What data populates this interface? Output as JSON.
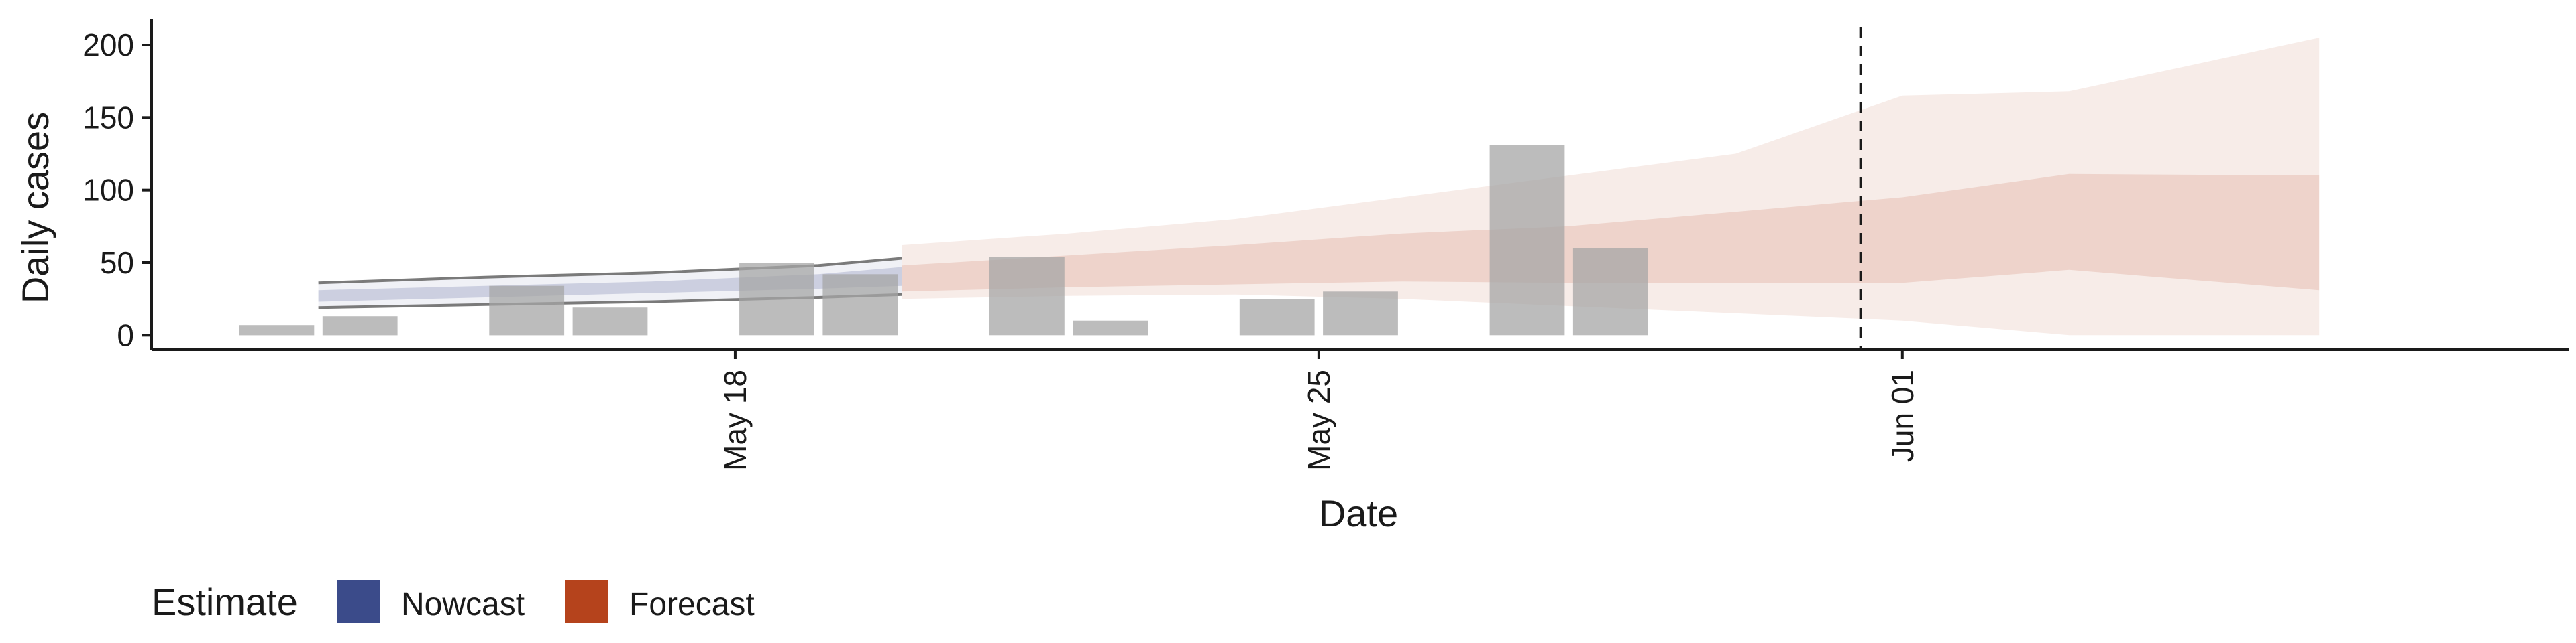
{
  "chart_data": {
    "type": "bar",
    "title": "",
    "xlabel": "Date",
    "ylabel": "Daily cases",
    "xlim": [
      "2020-05-11",
      "2020-06-09"
    ],
    "ylim": [
      -10,
      218
    ],
    "y_ticks": [
      0,
      50,
      100,
      150,
      200
    ],
    "x_ticks": [
      {
        "date": "2020-05-18",
        "label": "May 18"
      },
      {
        "date": "2020-05-25",
        "label": "May 25"
      },
      {
        "date": "2020-06-01",
        "label": "Jun 01"
      }
    ],
    "reference_line": {
      "date": "2020-05-31",
      "style": "dashed"
    },
    "grid": false,
    "observed_cases": [
      {
        "date": "2020-05-12",
        "value": 7
      },
      {
        "date": "2020-05-13",
        "value": 13
      },
      {
        "date": "2020-05-15",
        "value": 34
      },
      {
        "date": "2020-05-16",
        "value": 19
      },
      {
        "date": "2020-05-18",
        "value": 50
      },
      {
        "date": "2020-05-19",
        "value": 42
      },
      {
        "date": "2020-05-21",
        "value": 54
      },
      {
        "date": "2020-05-22",
        "value": 10
      },
      {
        "date": "2020-05-24",
        "value": 25
      },
      {
        "date": "2020-05-25",
        "value": 30
      },
      {
        "date": "2020-05-27",
        "value": 131
      },
      {
        "date": "2020-05-28",
        "value": 60
      }
    ],
    "bar_color": "#a6a6a6",
    "nowcast": {
      "name": "Nowcast",
      "color": "#3b4b8a",
      "x": [
        "2020-05-13",
        "2020-05-15",
        "2020-05-17",
        "2020-05-19",
        "2020-05-20"
      ],
      "median": [
        27,
        30,
        33,
        37,
        40
      ],
      "inner_lower": [
        23,
        26,
        29,
        32,
        34
      ],
      "inner_upper": [
        31,
        34,
        37,
        42,
        47
      ],
      "outer_lower": [
        19,
        21,
        23,
        26,
        28
      ],
      "outer_upper": [
        36,
        40,
        43,
        48,
        53
      ]
    },
    "forecast": {
      "name": "Forecast",
      "color": "#b5431c",
      "x": [
        "2020-05-20",
        "2020-05-22",
        "2020-05-24",
        "2020-05-26",
        "2020-05-28",
        "2020-05-30",
        "2020-06-01",
        "2020-06-03",
        "2020-06-06"
      ],
      "inner_lower": [
        30,
        33,
        35,
        37,
        36,
        36,
        36,
        45,
        31
      ],
      "inner_upper": [
        48,
        55,
        62,
        70,
        75,
        85,
        95,
        111,
        110
      ],
      "outer_lower": [
        25,
        27,
        28,
        25,
        20,
        15,
        10,
        0,
        0
      ],
      "outer_upper": [
        62,
        70,
        80,
        95,
        110,
        125,
        165,
        168,
        205
      ]
    },
    "legend": {
      "position": "bottom-left",
      "title": "Estimate",
      "items": [
        {
          "label": "Nowcast",
          "color": "#3b4b8a"
        },
        {
          "label": "Forecast",
          "color": "#b5431c"
        }
      ]
    }
  }
}
